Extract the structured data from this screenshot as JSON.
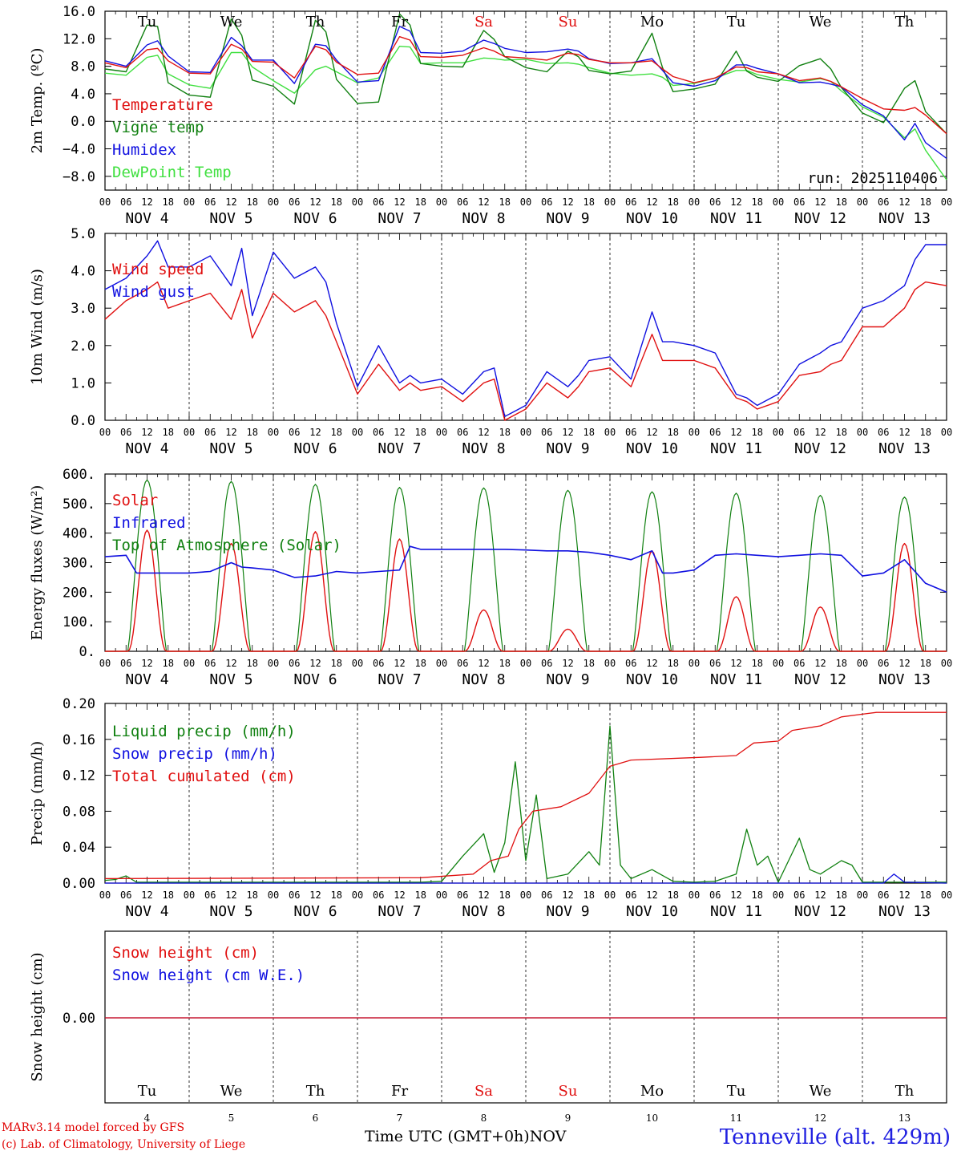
{
  "colors": {
    "temperature": "#e01010",
    "vigne": "#108010",
    "humidex": "#1010e0",
    "dewpoint": "#40e040",
    "axis": "#000000",
    "weekend": "#e01010"
  },
  "run_label": "run: 2025110406",
  "days_short": [
    "Tu",
    "We",
    "Th",
    "Fr",
    "Sa",
    "Su",
    "Mo",
    "Tu",
    "We",
    "Th"
  ],
  "weekend_days": [
    4,
    5
  ],
  "date_labels": [
    "NOV  4",
    "NOV  5",
    "NOV  6",
    "NOV  7",
    "NOV  8",
    "NOV  9",
    "NOV 10",
    "NOV 11",
    "NOV 12",
    "NOV 13"
  ],
  "hour_labels": [
    "00",
    "06",
    "12",
    "18"
  ],
  "bottom_day_numbers": [
    "4",
    "5",
    "6",
    "7",
    "8",
    "9",
    "10",
    "11",
    "12",
    "13"
  ],
  "footer": {
    "credit_line1": "MARv3.14 model forced by GFS",
    "credit_line2": "(c) Lab. of Climatology, University of Liege",
    "axis_title": "Time UTC (GMT+0h)",
    "month": "NOV",
    "station": "Tenneville (alt. 429m)"
  },
  "chart_data": [
    {
      "type": "line",
      "id": "temperature",
      "ylabel": "2m Temp. (ºC)",
      "ylim": [
        -10,
        16
      ],
      "yticks": [
        16,
        12,
        8,
        4,
        0,
        -4,
        -8
      ],
      "ytick_labels": [
        "16.0",
        "12.0",
        "8.0",
        "4.0",
        "0.0",
        "−4.0",
        "−8.0"
      ],
      "zero_line": true,
      "xhours": [
        0,
        6,
        12,
        15,
        18,
        24,
        30,
        36,
        39,
        42,
        48,
        54,
        60,
        63,
        66,
        72,
        78,
        84,
        87,
        90,
        96,
        102,
        108,
        111,
        114,
        120,
        126,
        132,
        135,
        138,
        144,
        150,
        156,
        159,
        162,
        168,
        174,
        180,
        183,
        186,
        192,
        198,
        204,
        207,
        210,
        216,
        222,
        228,
        231,
        234,
        240
      ],
      "legend": [
        "Temperature",
        "Vigne temp",
        "Humidex",
        "DewPoint Temp"
      ],
      "series": [
        {
          "name": "Temperature",
          "color": "#e01010",
          "values": [
            8.5,
            7.8,
            10.4,
            10.6,
            8.8,
            7.0,
            6.9,
            11.2,
            10.5,
            8.7,
            8.6,
            6.3,
            10.9,
            10.4,
            8.6,
            6.8,
            7.0,
            12.3,
            11.8,
            9.4,
            9.3,
            9.6,
            10.7,
            10.2,
            9.4,
            9.2,
            8.9,
            9.9,
            9.7,
            9.0,
            8.5,
            8.5,
            8.8,
            7.6,
            6.5,
            5.6,
            6.3,
            7.9,
            7.8,
            7.2,
            6.9,
            5.9,
            6.3,
            5.8,
            5.0,
            3.3,
            1.8,
            1.6,
            2.0,
            0.9,
            -1.8
          ]
        },
        {
          "name": "Vigne temp",
          "color": "#108010",
          "values": [
            7.6,
            7.2,
            14.0,
            13.8,
            5.6,
            3.8,
            3.5,
            14.9,
            12.5,
            6.0,
            5.1,
            2.5,
            14.7,
            13.0,
            6.1,
            2.6,
            2.8,
            15.6,
            14.0,
            8.4,
            8.0,
            7.9,
            13.2,
            11.9,
            9.4,
            7.8,
            7.2,
            10.2,
            9.4,
            7.4,
            6.9,
            7.3,
            12.8,
            7.8,
            4.3,
            4.7,
            5.4,
            10.2,
            7.3,
            6.4,
            5.8,
            8.1,
            9.1,
            7.6,
            4.9,
            1.2,
            -0.2,
            4.8,
            5.9,
            1.4,
            -1.8
          ]
        },
        {
          "name": "Humidex",
          "color": "#1010e0",
          "values": [
            8.8,
            8.0,
            11.1,
            11.7,
            9.5,
            7.2,
            7.1,
            12.2,
            11.0,
            8.9,
            8.9,
            5.5,
            11.2,
            11.0,
            8.9,
            5.7,
            5.9,
            13.8,
            13.1,
            10.0,
            9.9,
            10.2,
            11.8,
            11.3,
            10.6,
            10.0,
            10.1,
            10.5,
            10.2,
            9.1,
            8.4,
            8.5,
            9.1,
            7.4,
            5.6,
            5.1,
            5.9,
            8.2,
            8.2,
            7.7,
            6.9,
            5.6,
            5.7,
            5.4,
            5.0,
            2.4,
            0.8,
            -2.7,
            -0.3,
            -3.1,
            -5.4
          ]
        },
        {
          "name": "DewPoint Temp",
          "color": "#40e040",
          "values": [
            7.0,
            6.7,
            9.3,
            9.6,
            6.9,
            5.3,
            4.8,
            10.0,
            10.0,
            7.9,
            5.9,
            4.1,
            7.5,
            8.0,
            7.2,
            5.6,
            6.3,
            10.9,
            10.8,
            8.4,
            8.5,
            8.5,
            9.2,
            9.1,
            8.9,
            9.0,
            8.4,
            8.5,
            8.3,
            7.8,
            7.0,
            6.7,
            6.9,
            6.4,
            5.2,
            5.5,
            6.3,
            7.4,
            7.4,
            6.8,
            6.1,
            5.7,
            6.2,
            5.8,
            4.4,
            2.1,
            0.6,
            -2.4,
            -1.1,
            -4.2,
            -8.5
          ]
        }
      ]
    },
    {
      "type": "line",
      "id": "wind",
      "ylabel": "10m Wind (m/s)",
      "ylim": [
        0,
        5
      ],
      "yticks": [
        5,
        4,
        3,
        2,
        1,
        0
      ],
      "ytick_labels": [
        "5.0",
        "4.0",
        "3.0",
        "2.0",
        "1.0",
        "0.0"
      ],
      "zero_line": false,
      "xhours": [
        0,
        6,
        12,
        15,
        18,
        24,
        30,
        36,
        39,
        42,
        48,
        54,
        60,
        63,
        66,
        72,
        78,
        84,
        87,
        90,
        96,
        102,
        108,
        111,
        114,
        120,
        126,
        132,
        135,
        138,
        144,
        150,
        156,
        159,
        162,
        168,
        174,
        180,
        183,
        186,
        192,
        198,
        204,
        207,
        210,
        216,
        222,
        228,
        231,
        234,
        240
      ],
      "legend": [
        "Wind speed",
        "Wind gust"
      ],
      "series": [
        {
          "name": "Wind speed",
          "color": "#e01010",
          "values": [
            2.7,
            3.2,
            3.5,
            3.7,
            3.0,
            3.2,
            3.4,
            2.7,
            3.5,
            2.2,
            3.4,
            2.9,
            3.2,
            2.8,
            2.1,
            0.7,
            1.5,
            0.8,
            1.0,
            0.8,
            0.9,
            0.5,
            1.0,
            1.1,
            0.0,
            0.3,
            1.0,
            0.6,
            0.9,
            1.3,
            1.4,
            0.9,
            2.3,
            1.6,
            1.6,
            1.6,
            1.4,
            0.6,
            0.5,
            0.3,
            0.5,
            1.2,
            1.3,
            1.5,
            1.6,
            2.5,
            2.5,
            3.0,
            3.5,
            3.7,
            3.6
          ]
        },
        {
          "name": "Wind gust",
          "color": "#1010e0",
          "values": [
            3.5,
            3.8,
            4.4,
            4.8,
            4.1,
            4.1,
            4.4,
            3.6,
            4.6,
            2.8,
            4.5,
            3.8,
            4.1,
            3.7,
            2.6,
            0.9,
            2.0,
            1.0,
            1.2,
            1.0,
            1.1,
            0.7,
            1.3,
            1.4,
            0.1,
            0.4,
            1.3,
            0.9,
            1.2,
            1.6,
            1.7,
            1.1,
            2.9,
            2.1,
            2.1,
            2.0,
            1.8,
            0.7,
            0.6,
            0.4,
            0.7,
            1.5,
            1.8,
            2.0,
            2.1,
            3.0,
            3.2,
            3.6,
            4.3,
            4.7,
            4.7
          ]
        }
      ]
    },
    {
      "type": "line",
      "id": "energy",
      "ylabel": "Energy fluxes (W/m²)",
      "ylim": [
        0,
        600
      ],
      "yticks": [
        600,
        500,
        400,
        300,
        200,
        100,
        0
      ],
      "ytick_labels": [
        "600.",
        "500.",
        "400.",
        "300.",
        "200.",
        "100.",
        "0."
      ],
      "zero_line": false,
      "legend": [
        "Solar",
        "Infrared",
        "Top of Atmosphere (Solar)"
      ],
      "toa_peaks": [
        580,
        575,
        565,
        555,
        553,
        545,
        540,
        535,
        528,
        522
      ],
      "solar_peaks": [
        410,
        365,
        405,
        380,
        140,
        75,
        340,
        185,
        150,
        365
      ],
      "infrared": {
        "xhours": [
          0,
          6,
          9,
          12,
          18,
          24,
          30,
          36,
          39,
          42,
          48,
          54,
          60,
          66,
          72,
          78,
          84,
          87,
          90,
          96,
          102,
          108,
          114,
          120,
          126,
          132,
          138,
          144,
          150,
          156,
          159,
          162,
          168,
          174,
          180,
          186,
          192,
          198,
          204,
          210,
          216,
          222,
          228,
          234,
          240
        ],
        "values": [
          320,
          325,
          265,
          265,
          265,
          265,
          270,
          300,
          285,
          282,
          275,
          250,
          255,
          270,
          265,
          270,
          275,
          355,
          345,
          345,
          345,
          345,
          345,
          343,
          340,
          340,
          335,
          325,
          310,
          340,
          265,
          265,
          275,
          325,
          330,
          325,
          320,
          325,
          330,
          325,
          255,
          265,
          310,
          230,
          200
        ]
      }
    },
    {
      "type": "line",
      "id": "precip",
      "ylabel": "Precip (mm/h)",
      "ylim": [
        0,
        0.2
      ],
      "yticks": [
        0.2,
        0.16,
        0.12,
        0.08,
        0.04,
        0
      ],
      "ytick_labels": [
        "0.20",
        "0.16",
        "0.12",
        "0.08",
        "0.04",
        "0.00"
      ],
      "zero_line": false,
      "legend": [
        "Liquid precip (mm/h)",
        "Snow precip (mm/h)",
        "Total cumulated (cm)"
      ],
      "series": [
        {
          "name": "Liquid precip (mm/h)",
          "color": "#108010",
          "points": [
            [
              0,
              0.003
            ],
            [
              3,
              0.004
            ],
            [
              6,
              0.008
            ],
            [
              9,
              0.001
            ],
            [
              90,
              0.001
            ],
            [
              96,
              0.002
            ],
            [
              102,
              0.03
            ],
            [
              108,
              0.055
            ],
            [
              111,
              0.012
            ],
            [
              114,
              0.045
            ],
            [
              117,
              0.135
            ],
            [
              120,
              0.025
            ],
            [
              123,
              0.098
            ],
            [
              126,
              0.005
            ],
            [
              132,
              0.01
            ],
            [
              138,
              0.035
            ],
            [
              141,
              0.02
            ],
            [
              144,
              0.175
            ],
            [
              147,
              0.02
            ],
            [
              150,
              0.005
            ],
            [
              156,
              0.015
            ],
            [
              162,
              0.002
            ],
            [
              168,
              0.001
            ],
            [
              174,
              0.002
            ],
            [
              180,
              0.01
            ],
            [
              183,
              0.06
            ],
            [
              186,
              0.02
            ],
            [
              189,
              0.03
            ],
            [
              192,
              0.001
            ],
            [
              198,
              0.05
            ],
            [
              201,
              0.015
            ],
            [
              204,
              0.01
            ],
            [
              210,
              0.025
            ],
            [
              213,
              0.02
            ],
            [
              216,
              0.001
            ],
            [
              240,
              0.001
            ]
          ]
        },
        {
          "name": "Snow precip (mm/h)",
          "color": "#1010e0",
          "points": [
            [
              0,
              0
            ],
            [
              222,
              0
            ],
            [
              225,
              0.01
            ],
            [
              228,
              0.001
            ],
            [
              240,
              0
            ]
          ]
        },
        {
          "name": "Total cumulated (cm)",
          "color": "#e01010",
          "points": [
            [
              0,
              0.005
            ],
            [
              90,
              0.006
            ],
            [
              105,
              0.01
            ],
            [
              110,
              0.025
            ],
            [
              115,
              0.03
            ],
            [
              118,
              0.06
            ],
            [
              122,
              0.08
            ],
            [
              130,
              0.085
            ],
            [
              138,
              0.1
            ],
            [
              144,
              0.13
            ],
            [
              150,
              0.137
            ],
            [
              170,
              0.14
            ],
            [
              180,
              0.142
            ],
            [
              185,
              0.156
            ],
            [
              192,
              0.158
            ],
            [
              196,
              0.17
            ],
            [
              204,
              0.175
            ],
            [
              210,
              0.185
            ],
            [
              216,
              0.188
            ],
            [
              220,
              0.19
            ],
            [
              240,
              0.19
            ]
          ]
        }
      ]
    },
    {
      "type": "line",
      "id": "snow",
      "ylabel": "Snow height (cm)",
      "ytick_labels": [
        "0.00"
      ],
      "legend": [
        "Snow height (cm)",
        "Snow height (cm W.E.)"
      ],
      "series": [
        {
          "name": "Snow height (cm)",
          "color": "#e01010",
          "values": [
            0,
            0
          ]
        },
        {
          "name": "Snow height (cm W.E.)",
          "color": "#1010e0",
          "values": [
            0,
            0
          ]
        }
      ]
    }
  ]
}
